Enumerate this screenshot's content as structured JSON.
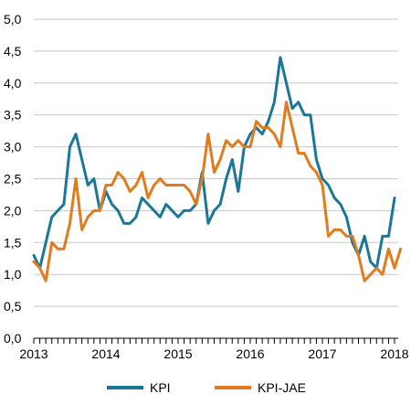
{
  "chart_data": {
    "type": "line",
    "title": "",
    "xlabel": "",
    "ylabel": "",
    "ylim": [
      0,
      5
    ],
    "yticks": [
      "0,0",
      "0,5",
      "1,0",
      "1,5",
      "2,0",
      "2,5",
      "3,0",
      "3,5",
      "4,0",
      "4,5",
      "5,0"
    ],
    "xticks": [
      "2013",
      "2014",
      "2015",
      "2016",
      "2017",
      "2018"
    ],
    "grid": true,
    "legend": "bottom",
    "series": [
      {
        "name": "KPI",
        "color": "#1a7799",
        "values": [
          1.3,
          1.1,
          1.5,
          1.9,
          2.0,
          2.1,
          3.0,
          3.2,
          2.8,
          2.4,
          2.5,
          2.0,
          2.3,
          2.1,
          2.0,
          1.8,
          1.8,
          1.9,
          2.2,
          2.1,
          2.0,
          1.9,
          2.1,
          2.0,
          1.9,
          2.0,
          2.0,
          2.1,
          2.6,
          1.8,
          2.0,
          2.1,
          2.5,
          2.8,
          2.3,
          3.0,
          3.2,
          3.3,
          3.2,
          3.4,
          3.7,
          4.4,
          4.0,
          3.6,
          3.7,
          3.5,
          3.5,
          2.8,
          2.5,
          2.4,
          2.2,
          2.1,
          1.9,
          1.5,
          1.3,
          1.6,
          1.2,
          1.1,
          1.6,
          1.6,
          2.2
        ]
      },
      {
        "name": "KPI-JAE",
        "color": "#e07b1e",
        "values": [
          1.2,
          1.1,
          0.9,
          1.5,
          1.4,
          1.4,
          1.8,
          2.5,
          1.7,
          1.9,
          2.0,
          2.0,
          2.4,
          2.4,
          2.6,
          2.5,
          2.3,
          2.4,
          2.6,
          2.2,
          2.4,
          2.5,
          2.4,
          2.4,
          2.4,
          2.4,
          2.3,
          2.1,
          2.5,
          3.2,
          2.6,
          2.8,
          3.1,
          3.0,
          3.1,
          3.0,
          3.0,
          3.4,
          3.3,
          3.3,
          3.2,
          3.0,
          3.7,
          3.3,
          2.9,
          2.9,
          2.7,
          2.6,
          2.4,
          1.6,
          1.7,
          1.7,
          1.6,
          1.6,
          1.3,
          0.9,
          1.0,
          1.1,
          1.0,
          1.4,
          1.1,
          1.4
        ]
      }
    ]
  }
}
